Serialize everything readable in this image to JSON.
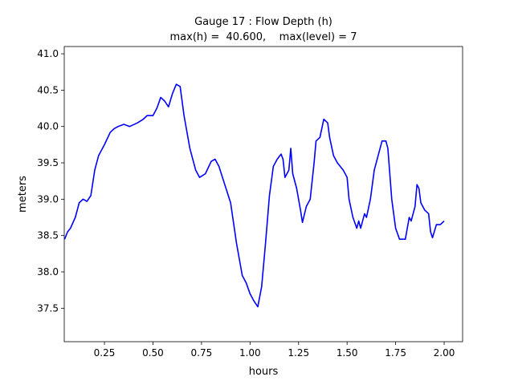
{
  "chart_data": {
    "type": "line",
    "title": "Gauge 17 : Flow Depth (h)",
    "subtitle": "max(h) =  40.600,    max(level) = 7",
    "xlabel": "hours",
    "ylabel": "meters",
    "xlim": [
      0.043,
      2.095
    ],
    "ylim": [
      37.04,
      41.1
    ],
    "xticks": [
      0.25,
      {
        "value": 0.5,
        "label": "0.50"
      },
      0.75,
      {
        "value": 1.0,
        "label": "1.00"
      },
      1.25,
      {
        "value": 1.5,
        "label": "1.50"
      },
      1.75,
      {
        "value": 2.0,
        "label": "2.00"
      }
    ],
    "yticks": [
      37.5,
      {
        "value": 38.0,
        "label": "38.0"
      },
      38.5,
      {
        "value": 39.0,
        "label": "39.0"
      },
      39.5,
      {
        "value": 40.0,
        "label": "40.0"
      },
      40.5,
      {
        "value": 41.0,
        "label": "41.0"
      }
    ],
    "grid": false,
    "x": [
      0.045,
      0.06,
      0.075,
      0.1,
      0.12,
      0.14,
      0.16,
      0.18,
      0.2,
      0.22,
      0.25,
      0.28,
      0.3,
      0.32,
      0.35,
      0.38,
      0.42,
      0.45,
      0.47,
      0.5,
      0.52,
      0.54,
      0.56,
      0.58,
      0.6,
      0.62,
      0.64,
      0.66,
      0.69,
      0.72,
      0.74,
      0.77,
      0.8,
      0.82,
      0.84,
      0.87,
      0.9,
      0.93,
      0.96,
      0.98,
      1.0,
      1.02,
      1.04,
      1.06,
      1.08,
      1.1,
      1.12,
      1.14,
      1.16,
      1.17,
      1.18,
      1.2,
      1.21,
      1.22,
      1.24,
      1.26,
      1.27,
      1.29,
      1.31,
      1.33,
      1.34,
      1.36,
      1.38,
      1.4,
      1.41,
      1.43,
      1.45,
      1.48,
      1.5,
      1.51,
      1.53,
      1.55,
      1.56,
      1.57,
      1.59,
      1.6,
      1.62,
      1.64,
      1.66,
      1.68,
      1.7,
      1.71,
      1.73,
      1.75,
      1.77,
      1.8,
      1.81,
      1.82,
      1.83,
      1.85,
      1.86,
      1.87,
      1.88,
      1.9,
      1.92,
      1.93,
      1.94,
      1.96,
      1.98,
      2.0
    ],
    "series": [
      {
        "color": "#0000ff",
        "values": [
          38.45,
          38.55,
          38.6,
          38.75,
          38.95,
          39.0,
          38.97,
          39.05,
          39.4,
          39.6,
          39.75,
          39.92,
          39.97,
          40.0,
          40.03,
          40.0,
          40.05,
          40.1,
          40.15,
          40.15,
          40.25,
          40.4,
          40.35,
          40.27,
          40.45,
          40.58,
          40.55,
          40.15,
          39.7,
          39.4,
          39.3,
          39.35,
          39.52,
          39.55,
          39.45,
          39.2,
          38.95,
          38.4,
          37.95,
          37.85,
          37.7,
          37.6,
          37.52,
          37.8,
          38.4,
          39.05,
          39.45,
          39.55,
          39.62,
          39.55,
          39.3,
          39.4,
          39.7,
          39.35,
          39.15,
          38.85,
          38.68,
          38.9,
          39.0,
          39.5,
          39.8,
          39.85,
          40.1,
          40.05,
          39.85,
          39.6,
          39.5,
          39.4,
          39.3,
          39.0,
          38.75,
          38.6,
          38.7,
          38.6,
          38.8,
          38.75,
          39.0,
          39.4,
          39.6,
          39.8,
          39.8,
          39.7,
          39.0,
          38.6,
          38.45,
          38.45,
          38.6,
          38.75,
          38.7,
          38.9,
          39.2,
          39.15,
          38.95,
          38.85,
          38.8,
          38.55,
          38.47,
          38.65,
          38.65,
          38.7
        ]
      }
    ]
  }
}
